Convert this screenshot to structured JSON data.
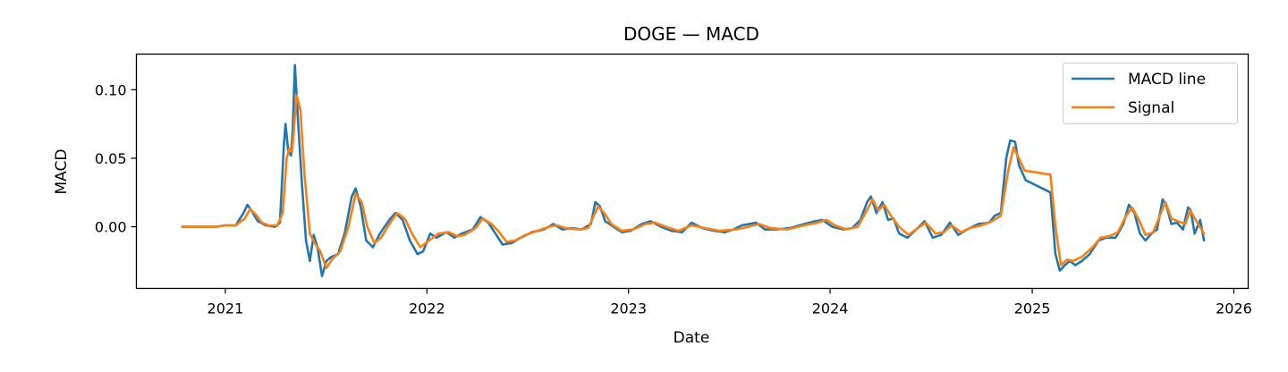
{
  "chart_data": {
    "type": "line",
    "title": "DOGE — MACD",
    "xlabel": "Date",
    "ylabel": "MACD",
    "x_ticks": [
      "2021",
      "2022",
      "2023",
      "2024",
      "2025",
      "2026"
    ],
    "y_ticks": [
      "0.00",
      "0.05",
      "0.10"
    ],
    "xlim": [
      "2020-07-24",
      "2026-01-27"
    ],
    "ylim": [
      -0.045,
      0.126
    ],
    "grid": false,
    "legend_position": "upper right",
    "series": [
      {
        "name": "MACD line",
        "color": "#1f77b4",
        "points": [
          [
            "2020-10-15",
            0.0
          ],
          [
            "2020-12-15",
            0.0
          ],
          [
            "2021-01-01",
            0.001
          ],
          [
            "2021-01-20",
            0.001
          ],
          [
            "2021-02-03",
            0.01
          ],
          [
            "2021-02-10",
            0.016
          ],
          [
            "2021-02-20",
            0.01
          ],
          [
            "2021-03-01",
            0.004
          ],
          [
            "2021-03-15",
            0.001
          ],
          [
            "2021-04-01",
            0.0
          ],
          [
            "2021-04-10",
            0.003
          ],
          [
            "2021-04-17",
            0.06
          ],
          [
            "2021-04-20",
            0.075
          ],
          [
            "2021-04-25",
            0.055
          ],
          [
            "2021-04-30",
            0.052
          ],
          [
            "2021-05-03",
            0.07
          ],
          [
            "2021-05-07",
            0.118
          ],
          [
            "2021-05-13",
            0.075
          ],
          [
            "2021-05-20",
            0.03
          ],
          [
            "2021-05-27",
            -0.01
          ],
          [
            "2021-06-03",
            -0.025
          ],
          [
            "2021-06-10",
            -0.006
          ],
          [
            "2021-06-17",
            -0.015
          ],
          [
            "2021-06-25",
            -0.036
          ],
          [
            "2021-07-03",
            -0.025
          ],
          [
            "2021-07-12",
            -0.022
          ],
          [
            "2021-07-24",
            -0.02
          ],
          [
            "2021-08-05",
            -0.005
          ],
          [
            "2021-08-18",
            0.022
          ],
          [
            "2021-08-25",
            0.028
          ],
          [
            "2021-09-03",
            0.015
          ],
          [
            "2021-09-13",
            -0.01
          ],
          [
            "2021-09-25",
            -0.015
          ],
          [
            "2021-10-08",
            -0.005
          ],
          [
            "2021-10-25",
            0.005
          ],
          [
            "2021-11-05",
            0.01
          ],
          [
            "2021-11-18",
            0.005
          ],
          [
            "2021-12-01",
            -0.01
          ],
          [
            "2021-12-15",
            -0.02
          ],
          [
            "2021-12-25",
            -0.018
          ],
          [
            "2022-01-07",
            -0.005
          ],
          [
            "2022-01-18",
            -0.008
          ],
          [
            "2022-02-05",
            -0.004
          ],
          [
            "2022-02-20",
            -0.008
          ],
          [
            "2022-03-05",
            -0.005
          ],
          [
            "2022-03-25",
            -0.002
          ],
          [
            "2022-04-08",
            0.007
          ],
          [
            "2022-04-22",
            0.003
          ],
          [
            "2022-05-05",
            -0.005
          ],
          [
            "2022-05-18",
            -0.013
          ],
          [
            "2022-06-03",
            -0.012
          ],
          [
            "2022-06-20",
            -0.008
          ],
          [
            "2022-07-10",
            -0.004
          ],
          [
            "2022-08-01",
            -0.002
          ],
          [
            "2022-08-18",
            0.002
          ],
          [
            "2022-09-03",
            -0.002
          ],
          [
            "2022-09-22",
            -0.001
          ],
          [
            "2022-10-08",
            -0.002
          ],
          [
            "2022-10-25",
            0.002
          ],
          [
            "2022-11-02",
            0.018
          ],
          [
            "2022-11-10",
            0.015
          ],
          [
            "2022-11-20",
            0.004
          ],
          [
            "2022-12-05",
            0.0
          ],
          [
            "2022-12-20",
            -0.004
          ],
          [
            "2023-01-05",
            -0.003
          ],
          [
            "2023-01-25",
            0.002
          ],
          [
            "2023-02-10",
            0.004
          ],
          [
            "2023-03-01",
            0.0
          ],
          [
            "2023-03-20",
            -0.003
          ],
          [
            "2023-04-08",
            -0.004
          ],
          [
            "2023-04-25",
            0.003
          ],
          [
            "2023-05-15",
            -0.001
          ],
          [
            "2023-06-05",
            -0.003
          ],
          [
            "2023-06-25",
            -0.004
          ],
          [
            "2023-07-10",
            -0.002
          ],
          [
            "2023-07-25",
            0.001
          ],
          [
            "2023-08-20",
            0.003
          ],
          [
            "2023-09-05",
            -0.002
          ],
          [
            "2023-09-25",
            -0.002
          ],
          [
            "2023-10-20",
            -0.001
          ],
          [
            "2023-11-15",
            0.002
          ],
          [
            "2023-12-05",
            0.004
          ],
          [
            "2023-12-18",
            0.005
          ],
          [
            "2024-01-05",
            0.0
          ],
          [
            "2024-01-25",
            -0.002
          ],
          [
            "2024-02-10",
            -0.001
          ],
          [
            "2024-02-25",
            0.005
          ],
          [
            "2024-03-08",
            0.018
          ],
          [
            "2024-03-15",
            0.022
          ],
          [
            "2024-03-25",
            0.01
          ],
          [
            "2024-04-05",
            0.018
          ],
          [
            "2024-04-15",
            0.005
          ],
          [
            "2024-04-25",
            0.006
          ],
          [
            "2024-05-05",
            -0.005
          ],
          [
            "2024-05-20",
            -0.008
          ],
          [
            "2024-06-05",
            -0.002
          ],
          [
            "2024-06-20",
            0.004
          ],
          [
            "2024-07-05",
            -0.008
          ],
          [
            "2024-07-20",
            -0.006
          ],
          [
            "2024-08-05",
            0.003
          ],
          [
            "2024-08-20",
            -0.006
          ],
          [
            "2024-09-05",
            -0.002
          ],
          [
            "2024-09-25",
            0.002
          ],
          [
            "2024-10-15",
            0.003
          ],
          [
            "2024-10-25",
            0.008
          ],
          [
            "2024-11-05",
            0.01
          ],
          [
            "2024-11-15",
            0.05
          ],
          [
            "2024-11-22",
            0.063
          ],
          [
            "2024-12-01",
            0.062
          ],
          [
            "2024-12-08",
            0.045
          ],
          [
            "2024-12-20",
            0.034
          ],
          [
            "2025-02-03",
            0.025
          ],
          [
            "2025-02-12",
            -0.02
          ],
          [
            "2025-02-20",
            -0.032
          ],
          [
            "2025-03-01",
            -0.028
          ],
          [
            "2025-03-10",
            -0.025
          ],
          [
            "2025-03-20",
            -0.028
          ],
          [
            "2025-04-01",
            -0.025
          ],
          [
            "2025-04-15",
            -0.02
          ],
          [
            "2025-05-01",
            -0.01
          ],
          [
            "2025-05-15",
            -0.008
          ],
          [
            "2025-06-01",
            -0.008
          ],
          [
            "2025-06-15",
            0.002
          ],
          [
            "2025-06-25",
            0.016
          ],
          [
            "2025-07-05",
            0.01
          ],
          [
            "2025-07-15",
            -0.005
          ],
          [
            "2025-07-25",
            -0.01
          ],
          [
            "2025-08-05",
            -0.005
          ],
          [
            "2025-08-15",
            -0.002
          ],
          [
            "2025-08-25",
            0.02
          ],
          [
            "2025-09-01",
            0.015
          ],
          [
            "2025-09-10",
            0.002
          ],
          [
            "2025-09-20",
            0.003
          ],
          [
            "2025-10-01",
            -0.002
          ],
          [
            "2025-10-10",
            0.014
          ],
          [
            "2025-10-15",
            0.012
          ],
          [
            "2025-10-22",
            -0.005
          ],
          [
            "2025-11-01",
            0.005
          ],
          [
            "2025-11-08",
            -0.01
          ]
        ]
      },
      {
        "name": "Signal",
        "color": "#ff7f0e",
        "points": [
          [
            "2020-10-15",
            0.0
          ],
          [
            "2020-12-15",
            0.0
          ],
          [
            "2021-01-01",
            0.001
          ],
          [
            "2021-01-20",
            0.001
          ],
          [
            "2021-02-05",
            0.006
          ],
          [
            "2021-02-15",
            0.013
          ],
          [
            "2021-02-25",
            0.009
          ],
          [
            "2021-03-08",
            0.003
          ],
          [
            "2021-03-20",
            0.001
          ],
          [
            "2021-04-05",
            0.001
          ],
          [
            "2021-04-15",
            0.01
          ],
          [
            "2021-04-22",
            0.05
          ],
          [
            "2021-04-27",
            0.057
          ],
          [
            "2021-05-02",
            0.055
          ],
          [
            "2021-05-10",
            0.096
          ],
          [
            "2021-05-17",
            0.085
          ],
          [
            "2021-05-24",
            0.04
          ],
          [
            "2021-06-03",
            -0.005
          ],
          [
            "2021-06-12",
            -0.012
          ],
          [
            "2021-06-22",
            -0.018
          ],
          [
            "2021-07-03",
            -0.03
          ],
          [
            "2021-07-15",
            -0.023
          ],
          [
            "2021-07-28",
            -0.018
          ],
          [
            "2021-08-12",
            0.0
          ],
          [
            "2021-08-25",
            0.024
          ],
          [
            "2021-09-05",
            0.018
          ],
          [
            "2021-09-15",
            0.0
          ],
          [
            "2021-09-28",
            -0.012
          ],
          [
            "2021-10-10",
            -0.008
          ],
          [
            "2021-10-25",
            0.002
          ],
          [
            "2021-11-08",
            0.01
          ],
          [
            "2021-11-22",
            0.006
          ],
          [
            "2021-12-05",
            -0.005
          ],
          [
            "2021-12-20",
            -0.015
          ],
          [
            "2022-01-05",
            -0.01
          ],
          [
            "2022-01-22",
            -0.005
          ],
          [
            "2022-02-10",
            -0.004
          ],
          [
            "2022-02-25",
            -0.007
          ],
          [
            "2022-03-10",
            -0.006
          ],
          [
            "2022-03-30",
            -0.001
          ],
          [
            "2022-04-12",
            0.006
          ],
          [
            "2022-04-28",
            0.002
          ],
          [
            "2022-05-12",
            -0.004
          ],
          [
            "2022-05-25",
            -0.011
          ],
          [
            "2022-06-10",
            -0.01
          ],
          [
            "2022-06-28",
            -0.006
          ],
          [
            "2022-07-20",
            -0.003
          ],
          [
            "2022-08-10",
            0.0
          ],
          [
            "2022-08-25",
            0.001
          ],
          [
            "2022-09-10",
            -0.001
          ],
          [
            "2022-10-01",
            -0.002
          ],
          [
            "2022-10-20",
            -0.001
          ],
          [
            "2022-11-07",
            0.015
          ],
          [
            "2022-11-18",
            0.01
          ],
          [
            "2022-12-01",
            0.002
          ],
          [
            "2022-12-20",
            -0.003
          ],
          [
            "2023-01-10",
            -0.002
          ],
          [
            "2023-02-01",
            0.002
          ],
          [
            "2023-02-18",
            0.003
          ],
          [
            "2023-03-10",
            0.0
          ],
          [
            "2023-04-01",
            -0.003
          ],
          [
            "2023-04-25",
            0.001
          ],
          [
            "2023-05-20",
            -0.001
          ],
          [
            "2023-06-15",
            -0.003
          ],
          [
            "2023-07-15",
            -0.002
          ],
          [
            "2023-08-05",
            0.0
          ],
          [
            "2023-08-25",
            0.002
          ],
          [
            "2023-09-15",
            -0.001
          ],
          [
            "2023-10-15",
            -0.002
          ],
          [
            "2023-11-15",
            0.001
          ],
          [
            "2023-12-10",
            0.003
          ],
          [
            "2023-12-25",
            0.005
          ],
          [
            "2024-01-10",
            0.001
          ],
          [
            "2024-01-30",
            -0.002
          ],
          [
            "2024-02-20",
            0.0
          ],
          [
            "2024-03-05",
            0.01
          ],
          [
            "2024-03-18",
            0.02
          ],
          [
            "2024-03-28",
            0.012
          ],
          [
            "2024-04-08",
            0.016
          ],
          [
            "2024-04-20",
            0.008
          ],
          [
            "2024-05-05",
            0.0
          ],
          [
            "2024-05-22",
            -0.006
          ],
          [
            "2024-06-08",
            -0.001
          ],
          [
            "2024-06-22",
            0.003
          ],
          [
            "2024-07-10",
            -0.005
          ],
          [
            "2024-07-25",
            -0.004
          ],
          [
            "2024-08-08",
            0.001
          ],
          [
            "2024-08-25",
            -0.004
          ],
          [
            "2024-09-10",
            -0.001
          ],
          [
            "2024-10-01",
            0.001
          ],
          [
            "2024-10-20",
            0.004
          ],
          [
            "2024-11-05",
            0.008
          ],
          [
            "2024-11-18",
            0.04
          ],
          [
            "2024-11-28",
            0.058
          ],
          [
            "2024-12-08",
            0.05
          ],
          [
            "2024-12-18",
            0.041
          ],
          [
            "2025-02-03",
            0.038
          ],
          [
            "2025-02-12",
            0.0
          ],
          [
            "2025-02-22",
            -0.028
          ],
          [
            "2025-03-05",
            -0.024
          ],
          [
            "2025-03-15",
            -0.025
          ],
          [
            "2025-04-01",
            -0.022
          ],
          [
            "2025-04-20",
            -0.015
          ],
          [
            "2025-05-05",
            -0.008
          ],
          [
            "2025-05-20",
            -0.007
          ],
          [
            "2025-06-05",
            -0.004
          ],
          [
            "2025-06-20",
            0.008
          ],
          [
            "2025-07-01",
            0.014
          ],
          [
            "2025-07-12",
            0.006
          ],
          [
            "2025-07-25",
            -0.006
          ],
          [
            "2025-08-08",
            -0.004
          ],
          [
            "2025-08-20",
            0.008
          ],
          [
            "2025-08-30",
            0.018
          ],
          [
            "2025-09-10",
            0.006
          ],
          [
            "2025-09-22",
            0.004
          ],
          [
            "2025-10-05",
            0.002
          ],
          [
            "2025-10-14",
            0.012
          ],
          [
            "2025-10-25",
            0.004
          ],
          [
            "2025-11-08",
            -0.005
          ]
        ]
      }
    ]
  }
}
